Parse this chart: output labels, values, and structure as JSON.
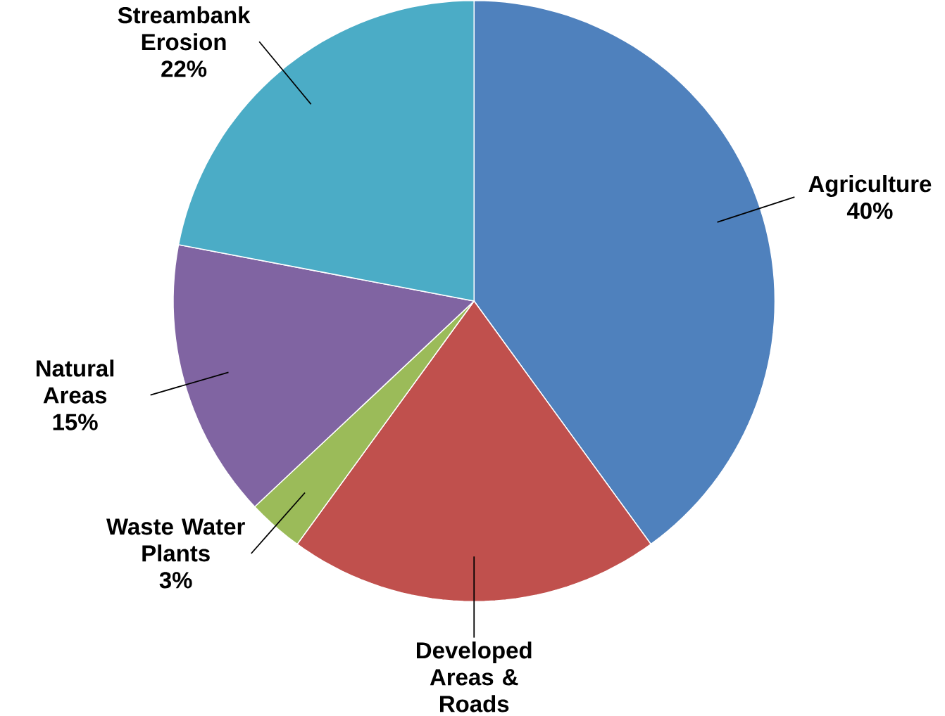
{
  "chart_data": {
    "type": "pie",
    "categories": [
      "Agriculture",
      "Developed Areas & Roads",
      "Waste Water Plants",
      "Natural Areas",
      "Streambank Erosion"
    ],
    "values": [
      40,
      20,
      3,
      15,
      22
    ],
    "colors": [
      "#4f81bd",
      "#c0504d",
      "#9bbb59",
      "#8064a2",
      "#4bacc6"
    ],
    "value_labels": [
      "40%",
      null,
      "3%",
      "15%",
      "22%"
    ]
  }
}
